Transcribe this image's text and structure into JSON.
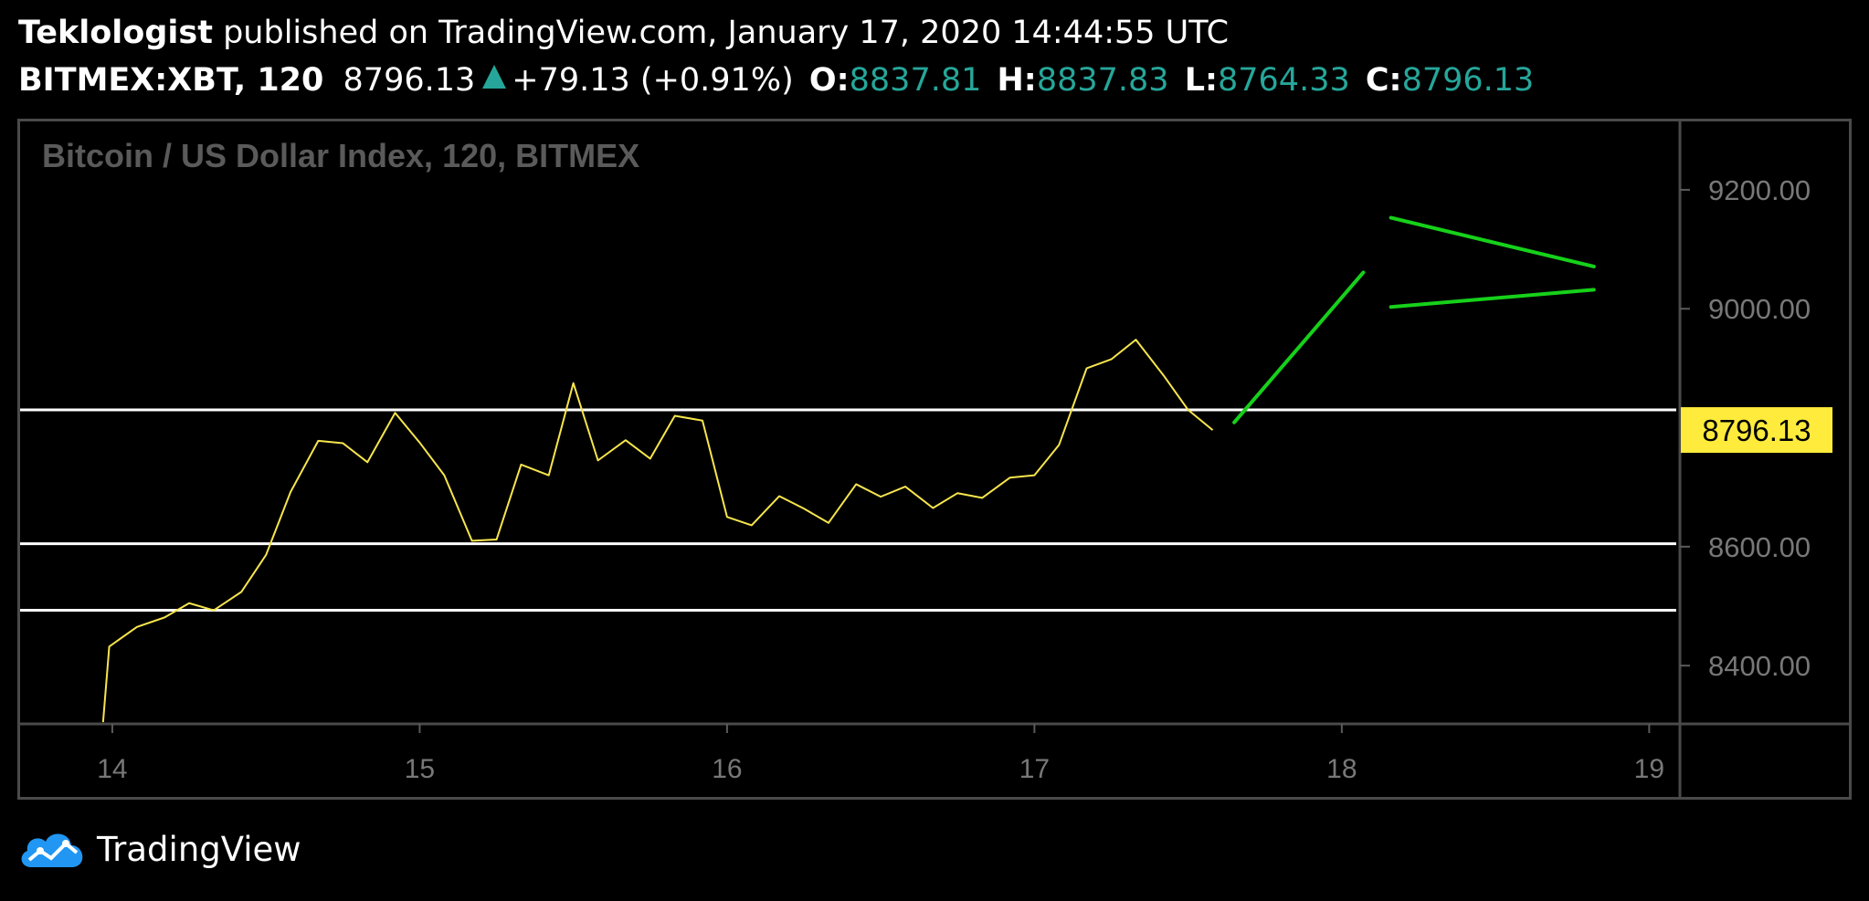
{
  "header": {
    "author": "Teklologist",
    "published_text": "published on TradingView.com, January 17, 2020 14:44:55 UTC",
    "symbol": "BITMEX:XBT, 120",
    "last_price": "8796.13",
    "change": "+79.13 (+0.91%)",
    "o_label": "O:",
    "o_value": "8837.81",
    "h_label": "H:",
    "h_value": "8837.83",
    "l_label": "L:",
    "l_value": "8764.33",
    "c_label": "C:",
    "c_value": "8796.13"
  },
  "footer": {
    "brand": "TradingView"
  },
  "colors": {
    "price_line": "#f7e54d",
    "projection": "#16d11a",
    "level_line": "#ffffff",
    "price_tag_bg": "#ffeb3b",
    "up": "#26a69a",
    "watermark": "#5a5a5a"
  },
  "chart_data": {
    "type": "line",
    "title": "Bitcoin / US Dollar Index, 120, BITMEX",
    "x_ticks": [
      "14",
      "15",
      "16",
      "17",
      "18",
      "19"
    ],
    "x_tick_values": [
      14,
      15,
      16,
      17,
      18,
      19
    ],
    "y_ticks": [
      "9200.00",
      "9000.00",
      "8600.00",
      "8400.00"
    ],
    "y_tick_values": [
      9200,
      9000,
      8600,
      8400
    ],
    "xlim": [
      13.7,
      19.1
    ],
    "ylim": [
      8302,
      9315
    ],
    "last_price_label": "8796.13",
    "last_price_value": 8796.13,
    "series": [
      {
        "x": [
          13.97,
          13.99,
          14.08,
          14.17,
          14.25,
          14.33,
          14.42,
          14.5,
          14.58,
          14.67,
          14.75,
          14.83,
          14.92,
          15.0,
          15.08,
          15.17,
          15.25,
          15.33,
          15.42,
          15.5,
          15.58,
          15.67,
          15.75,
          15.83,
          15.92,
          16.0,
          16.08,
          16.17,
          16.25,
          16.33,
          16.42,
          16.5,
          16.58,
          16.67,
          16.75,
          16.83,
          16.92,
          17.0,
          17.08,
          17.17,
          17.25,
          17.33,
          17.42,
          17.5,
          17.58
        ],
        "y": [
          8305,
          8432,
          8465,
          8481,
          8505,
          8493,
          8524,
          8586,
          8692,
          8778,
          8774,
          8742,
          8825,
          8775,
          8720,
          8610,
          8612,
          8738,
          8720,
          8875,
          8745,
          8779,
          8748,
          8820,
          8812,
          8650,
          8636,
          8685,
          8664,
          8640,
          8705,
          8684,
          8701,
          8665,
          8690,
          8682,
          8716,
          8720,
          8771,
          8900,
          8915,
          8948,
          8888,
          8830,
          8796
        ]
      }
    ],
    "horizontal_levels": [
      8830,
      8605,
      8493
    ],
    "projection_lines": [
      {
        "x": [
          17.65,
          18.07
        ],
        "y": [
          8809,
          9061
        ]
      },
      {
        "x": [
          18.16,
          18.82
        ],
        "y": [
          9153,
          9071
        ]
      },
      {
        "x": [
          18.16,
          18.82
        ],
        "y": [
          9003,
          9032
        ]
      }
    ]
  }
}
